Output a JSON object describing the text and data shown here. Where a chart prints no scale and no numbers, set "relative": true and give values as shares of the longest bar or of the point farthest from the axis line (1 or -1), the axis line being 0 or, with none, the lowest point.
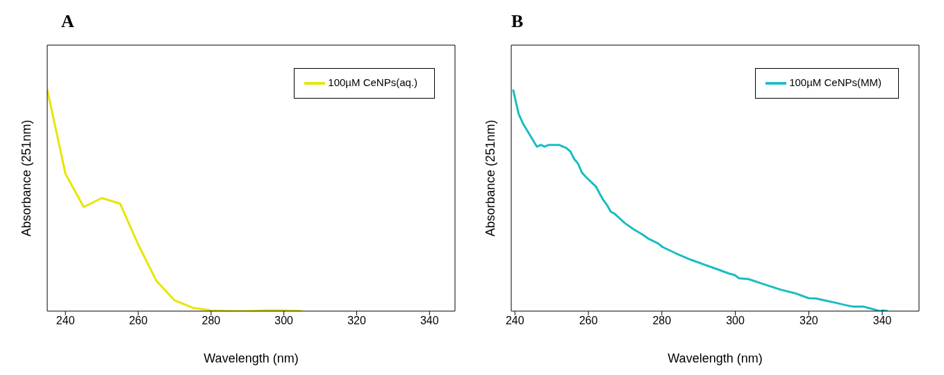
{
  "chart_data": [
    {
      "type": "line",
      "title": "A",
      "xlabel": "Wavelength (nm)",
      "ylabel": "Absorbance (251nm)",
      "relative": true,
      "xlim": [
        235,
        347
      ],
      "xticks": [
        240,
        260,
        280,
        300,
        320,
        340
      ],
      "legend": "top right",
      "series": [
        {
          "name": "100µM CeNPs(aq.)",
          "color": "#e6e600",
          "x": [
            235,
            240,
            245,
            250,
            255,
            260,
            265,
            270,
            275,
            280,
            285,
            290,
            295,
            300,
            305
          ],
          "values": [
            1.0,
            0.62,
            0.47,
            0.51,
            0.485,
            0.3,
            0.136,
            0.048,
            0.015,
            0.003,
            0,
            0,
            0.003,
            0.003,
            0
          ]
        }
      ]
    },
    {
      "type": "line",
      "title": "B",
      "xlabel": "Wavelength (nm)",
      "ylabel": "Absorbance (251nm)",
      "relative": true,
      "xlim": [
        239,
        350
      ],
      "xticks": [
        240,
        260,
        280,
        300,
        320,
        340
      ],
      "legend": "top right",
      "series": [
        {
          "name": "100µM CeNPs(MM)",
          "color": "#1abcc4",
          "x": [
            239.5,
            241,
            242.2,
            243.4,
            246,
            247.1,
            248.1,
            249.2,
            252,
            254,
            255.1,
            256.1,
            257.2,
            258.2,
            259.4,
            262,
            263.9,
            265.1,
            266.1,
            267.1,
            270,
            272.4,
            274.9,
            276.4,
            279,
            280.2,
            283.9,
            288,
            292,
            294.6,
            298.2,
            299.9,
            301,
            303.5,
            308.4,
            312.5,
            316.6,
            320,
            321.9,
            324.7,
            327.2,
            330,
            332.1,
            335,
            337,
            339.3,
            340.2,
            341.5
          ],
          "values": [
            1.0,
            0.89,
            0.846,
            0.813,
            0.742,
            0.75,
            0.742,
            0.75,
            0.75,
            0.736,
            0.72,
            0.687,
            0.665,
            0.626,
            0.604,
            0.563,
            0.505,
            0.478,
            0.448,
            0.44,
            0.396,
            0.368,
            0.344,
            0.326,
            0.305,
            0.289,
            0.26,
            0.231,
            0.207,
            0.192,
            0.17,
            0.162,
            0.148,
            0.145,
            0.118,
            0.096,
            0.079,
            0.058,
            0.057,
            0.047,
            0.038,
            0.027,
            0.02,
            0.02,
            0.011,
            0,
            0.003,
            0
          ]
        }
      ]
    }
  ]
}
